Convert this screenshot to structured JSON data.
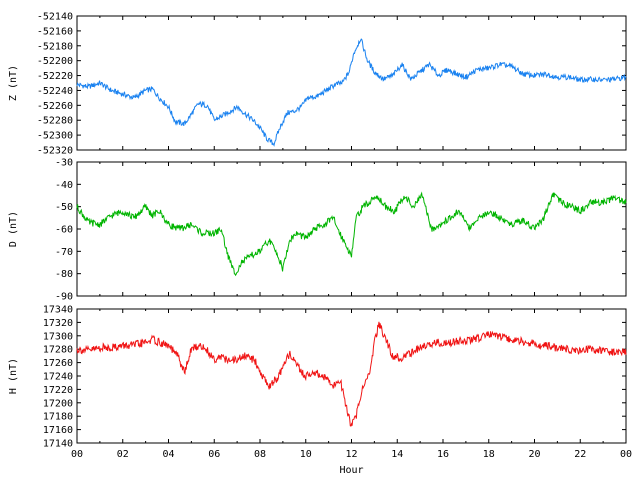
{
  "chart_data": [
    {
      "type": "line",
      "ylabel": "Z (nT)",
      "xlim": [
        0,
        24
      ],
      "ylim": [
        -52320,
        -52140
      ],
      "yticks": [
        -52140,
        -52160,
        -52180,
        -52200,
        -52220,
        -52240,
        -52260,
        -52280,
        -52300,
        -52320
      ],
      "grid": false,
      "series": [
        {
          "color": "#1a82f0",
          "x": [
            0,
            0.5,
            1.0,
            1.5,
            2.0,
            2.5,
            3.0,
            3.3,
            3.6,
            4.0,
            4.3,
            4.7,
            5.0,
            5.3,
            5.7,
            6.0,
            6.3,
            6.7,
            7.0,
            7.3,
            7.7,
            8.0,
            8.3,
            8.6,
            8.9,
            9.2,
            9.5,
            9.8,
            10.1,
            10.5,
            10.9,
            11.3,
            11.6,
            11.9,
            12.1,
            12.4,
            12.7,
            13.0,
            13.4,
            13.8,
            14.2,
            14.6,
            15.0,
            15.4,
            15.8,
            16.2,
            16.6,
            17.0,
            17.5,
            18.0,
            18.5,
            19.0,
            19.5,
            20.0,
            20.5,
            21.0,
            21.5,
            22.0,
            22.5,
            23.0,
            23.5,
            24.0
          ],
          "values": [
            -52232,
            -52235,
            -52230,
            -52240,
            -52245,
            -52250,
            -52240,
            -52238,
            -52250,
            -52262,
            -52282,
            -52285,
            -52272,
            -52258,
            -52260,
            -52280,
            -52275,
            -52268,
            -52262,
            -52270,
            -52280,
            -52290,
            -52305,
            -52312,
            -52288,
            -52270,
            -52268,
            -52262,
            -52250,
            -52248,
            -52240,
            -52232,
            -52230,
            -52215,
            -52190,
            -52170,
            -52200,
            -52215,
            -52225,
            -52220,
            -52205,
            -52225,
            -52215,
            -52205,
            -52220,
            -52212,
            -52218,
            -52222,
            -52212,
            -52210,
            -52205,
            -52208,
            -52218,
            -52220,
            -52218,
            -52222,
            -52222,
            -52226,
            -52225,
            -52226,
            -52225,
            -52222
          ]
        }
      ]
    },
    {
      "type": "line",
      "ylabel": "D (nT)",
      "xlim": [
        0,
        24
      ],
      "ylim": [
        -90,
        -30
      ],
      "yticks": [
        -30,
        -40,
        -50,
        -60,
        -70,
        -80,
        -90
      ],
      "grid": false,
      "series": [
        {
          "color": "#00b400",
          "x": [
            0,
            0.5,
            1.0,
            1.5,
            2.0,
            2.5,
            3.0,
            3.3,
            3.6,
            4.0,
            4.5,
            5.0,
            5.5,
            6.0,
            6.3,
            6.6,
            6.9,
            7.2,
            7.6,
            8.0,
            8.4,
            8.8,
            9.0,
            9.3,
            9.6,
            10.0,
            10.4,
            10.8,
            11.2,
            11.5,
            11.8,
            12.0,
            12.2,
            12.5,
            12.8,
            13.1,
            13.5,
            13.9,
            14.3,
            14.7,
            15.1,
            15.5,
            15.9,
            16.3,
            16.7,
            17.2,
            17.6,
            18.0,
            18.5,
            19.0,
            19.5,
            20.0,
            20.4,
            20.8,
            21.2,
            21.6,
            22.0,
            22.5,
            23.0,
            23.5,
            24.0
          ],
          "values": [
            -50,
            -57,
            -58,
            -54,
            -52,
            -55,
            -50,
            -54,
            -52,
            -58,
            -60,
            -58,
            -62,
            -62,
            -60,
            -72,
            -80,
            -75,
            -72,
            -70,
            -65,
            -72,
            -78,
            -65,
            -62,
            -64,
            -60,
            -58,
            -55,
            -62,
            -68,
            -72,
            -55,
            -50,
            -48,
            -45,
            -50,
            -52,
            -45,
            -50,
            -45,
            -60,
            -58,
            -55,
            -52,
            -60,
            -55,
            -52,
            -55,
            -58,
            -56,
            -60,
            -55,
            -45,
            -48,
            -50,
            -52,
            -48,
            -48,
            -46,
            -48
          ]
        }
      ]
    },
    {
      "type": "line",
      "ylabel": "H (nT)",
      "xlabel": "Hour",
      "xlim": [
        0,
        24
      ],
      "ylim": [
        17140,
        17340
      ],
      "yticks": [
        17340,
        17320,
        17300,
        17280,
        17260,
        17240,
        17220,
        17200,
        17180,
        17160,
        17140
      ],
      "xticks": [
        "00",
        "02",
        "04",
        "06",
        "08",
        "10",
        "12",
        "14",
        "16",
        "18",
        "20",
        "22",
        "00"
      ],
      "grid": false,
      "series": [
        {
          "color": "#f01414",
          "x": [
            0,
            0.5,
            1.0,
            1.5,
            2.0,
            2.5,
            3.0,
            3.3,
            3.6,
            4.0,
            4.4,
            4.7,
            5.0,
            5.3,
            5.6,
            6.0,
            6.3,
            6.6,
            7.0,
            7.4,
            7.8,
            8.1,
            8.4,
            8.7,
            9.0,
            9.3,
            9.6,
            10.0,
            10.4,
            10.8,
            11.2,
            11.5,
            11.8,
            12.0,
            12.2,
            12.5,
            12.8,
            13.0,
            13.2,
            13.5,
            13.8,
            14.2,
            14.6,
            15.0,
            15.4,
            15.8,
            16.2,
            16.6,
            17.0,
            17.5,
            18.0,
            18.5,
            19.0,
            19.5,
            20.0,
            20.5,
            21.0,
            21.5,
            22.0,
            22.5,
            23.0,
            23.5,
            24.0
          ],
          "values": [
            17280,
            17278,
            17282,
            17283,
            17285,
            17286,
            17290,
            17295,
            17290,
            17285,
            17270,
            17245,
            17280,
            17285,
            17282,
            17265,
            17270,
            17262,
            17265,
            17270,
            17262,
            17240,
            17225,
            17235,
            17250,
            17275,
            17255,
            17240,
            17245,
            17238,
            17225,
            17235,
            17190,
            17165,
            17180,
            17225,
            17245,
            17290,
            17318,
            17295,
            17270,
            17268,
            17275,
            17282,
            17288,
            17290,
            17288,
            17292,
            17292,
            17296,
            17302,
            17298,
            17293,
            17292,
            17288,
            17285,
            17282,
            17280,
            17278,
            17280,
            17278,
            17276,
            17277
          ]
        }
      ]
    }
  ]
}
